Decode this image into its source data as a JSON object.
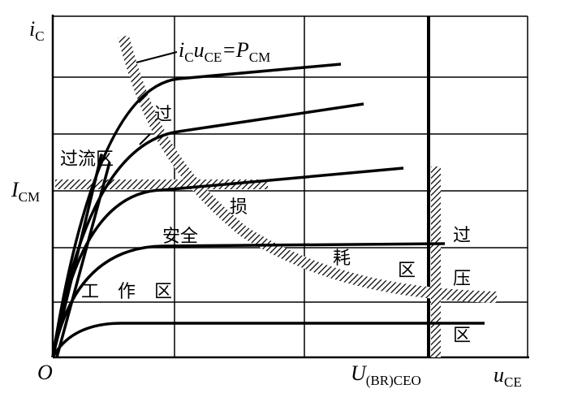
{
  "axes": {
    "y_label": {
      "main": "i",
      "sub": "C"
    },
    "x_label": {
      "main": "u",
      "sub": "CE"
    },
    "origin": "O",
    "icm": {
      "main": "I",
      "sub": "CM"
    },
    "breakdown": {
      "main": "U",
      "sub": "(BR)CEO"
    }
  },
  "formula": [
    {
      "main": "i",
      "sub": "C"
    },
    {
      "main": "u",
      "sub": "CE"
    },
    {
      "main": "=P",
      "sub": "CM"
    }
  ],
  "regions": {
    "over_current": "过流区",
    "loss": [
      "过",
      "损",
      "耗",
      "区"
    ],
    "safe": [
      "安全",
      "工",
      "作",
      "区"
    ],
    "over_voltage": [
      "过",
      "压",
      "区"
    ]
  }
}
